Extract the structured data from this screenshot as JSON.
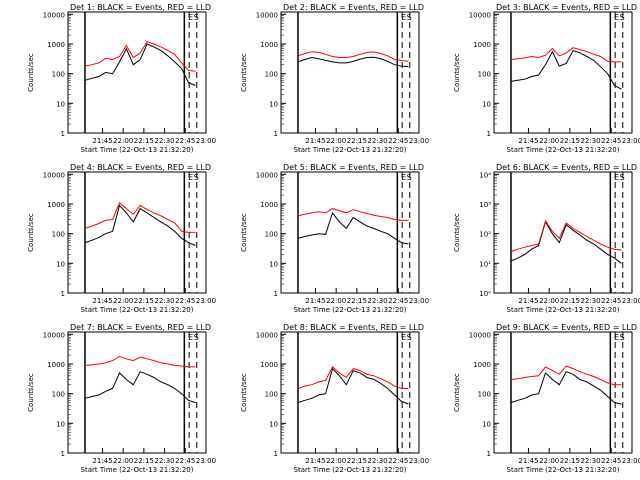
{
  "figure": {
    "colors": {
      "events": "#000000",
      "lld": "#ff0000",
      "axis": "#000000",
      "background": "#ffffff"
    },
    "time_labels": [
      "21:45",
      "22:00",
      "22:15",
      "22:30",
      "22:45",
      "23:00"
    ],
    "xlabel": "Start Time (22-Oct-13 21:32:20)",
    "ylabel": "Counts/sec",
    "marker_labels": [
      "E",
      "S"
    ]
  },
  "chart_data": [
    {
      "type": "line",
      "title": "Det 1: BLACK = Events, RED = LLD",
      "ylim": [
        1,
        12000
      ],
      "yscale": "log",
      "ytick_labels": [
        "1",
        "10",
        "100",
        "1000",
        "10000"
      ],
      "xlim_minutes": [
        -12.3,
        87.7
      ],
      "x_minutes": [
        0,
        5,
        10,
        15,
        20,
        25,
        30,
        35,
        40,
        45,
        50,
        55,
        60,
        65,
        70,
        75,
        80
      ],
      "series": [
        {
          "name": "Events",
          "values": [
            60,
            70,
            80,
            110,
            100,
            250,
            700,
            200,
            300,
            1000,
            800,
            600,
            400,
            250,
            150,
            50,
            40
          ]
        },
        {
          "name": "LLD",
          "values": [
            180,
            200,
            230,
            330,
            300,
            380,
            900,
            350,
            500,
            1200,
            1000,
            800,
            600,
            450,
            230,
            130,
            120
          ]
        }
      ]
    },
    {
      "type": "line",
      "title": "Det 2: BLACK = Events, RED = LLD",
      "ylim": [
        1,
        12000
      ],
      "yscale": "log",
      "ytick_labels": [
        "1",
        "10",
        "100",
        "1000",
        "10000"
      ],
      "xlim_minutes": [
        -12.3,
        87.7
      ],
      "x_minutes": [
        0,
        5,
        10,
        15,
        20,
        25,
        30,
        35,
        40,
        45,
        50,
        55,
        60,
        65,
        70,
        75,
        80
      ],
      "series": [
        {
          "name": "Events",
          "values": [
            250,
            300,
            350,
            320,
            280,
            250,
            230,
            230,
            260,
            310,
            350,
            360,
            320,
            260,
            200,
            180,
            170
          ]
        },
        {
          "name": "LLD",
          "values": [
            400,
            480,
            550,
            520,
            450,
            380,
            350,
            350,
            380,
            450,
            520,
            540,
            480,
            400,
            300,
            280,
            260
          ]
        }
      ]
    },
    {
      "type": "line",
      "title": "Det 3: BLACK = Events, RED = LLD",
      "ylim": [
        1,
        12000
      ],
      "yscale": "log",
      "ytick_labels": [
        "1",
        "10",
        "100",
        "1000",
        "10000"
      ],
      "xlim_minutes": [
        -12.3,
        87.7
      ],
      "x_minutes": [
        0,
        5,
        10,
        15,
        20,
        25,
        30,
        35,
        40,
        45,
        50,
        55,
        60,
        65,
        70,
        75,
        80
      ],
      "series": [
        {
          "name": "Events",
          "values": [
            55,
            60,
            65,
            80,
            90,
            200,
            550,
            180,
            220,
            600,
            500,
            380,
            280,
            170,
            100,
            40,
            30
          ]
        },
        {
          "name": "LLD",
          "values": [
            300,
            320,
            340,
            380,
            350,
            420,
            700,
            400,
            500,
            750,
            650,
            550,
            450,
            380,
            260,
            250,
            250
          ]
        }
      ]
    },
    {
      "type": "line",
      "title": "Det 4: BLACK = Events, RED = LLD",
      "ylim": [
        1,
        12000
      ],
      "yscale": "log",
      "ytick_labels": [
        "1",
        "10",
        "100",
        "1000",
        "10000"
      ],
      "xlim_minutes": [
        -12.3,
        87.7
      ],
      "x_minutes": [
        0,
        5,
        10,
        15,
        20,
        25,
        30,
        35,
        40,
        45,
        50,
        55,
        60,
        65,
        70,
        75,
        80
      ],
      "series": [
        {
          "name": "Events",
          "values": [
            50,
            60,
            75,
            100,
            120,
            900,
            500,
            250,
            700,
            500,
            350,
            250,
            180,
            120,
            70,
            50,
            40
          ]
        },
        {
          "name": "LLD",
          "values": [
            150,
            180,
            220,
            280,
            300,
            1100,
            700,
            450,
            900,
            650,
            500,
            400,
            300,
            230,
            120,
            110,
            110
          ]
        }
      ]
    },
    {
      "type": "line",
      "title": "Det 5: BLACK = Events, RED = LLD",
      "ylim": [
        1,
        12000
      ],
      "yscale": "log",
      "ytick_labels": [
        "1",
        "10",
        "100",
        "1000",
        "10000"
      ],
      "xlim_minutes": [
        -12.3,
        87.7
      ],
      "x_minutes": [
        0,
        5,
        10,
        15,
        20,
        25,
        30,
        35,
        40,
        45,
        50,
        55,
        60,
        65,
        70,
        75,
        80
      ],
      "series": [
        {
          "name": "Events",
          "values": [
            70,
            80,
            90,
            100,
            95,
            500,
            250,
            150,
            350,
            250,
            180,
            150,
            120,
            100,
            70,
            50,
            45
          ]
        },
        {
          "name": "LLD",
          "values": [
            400,
            450,
            500,
            550,
            500,
            700,
            600,
            500,
            650,
            550,
            480,
            420,
            380,
            350,
            300,
            280,
            280
          ]
        }
      ]
    },
    {
      "type": "line",
      "title": "Det 6: BLACK = Events, RED = LLD",
      "ylim": [
        1,
        12000
      ],
      "yscale": "log",
      "ytick_labels": [
        "10⁰",
        "10¹",
        "10²",
        "10³",
        "10⁴"
      ],
      "xlim_minutes": [
        -12.3,
        87.7
      ],
      "x_minutes": [
        0,
        5,
        10,
        15,
        20,
        25,
        30,
        35,
        40,
        45,
        50,
        55,
        60,
        65,
        70,
        75,
        80
      ],
      "series": [
        {
          "name": "Events",
          "values": [
            12,
            15,
            20,
            30,
            40,
            250,
            100,
            50,
            200,
            130,
            90,
            60,
            45,
            30,
            20,
            15,
            10
          ]
        },
        {
          "name": "LLD",
          "values": [
            25,
            30,
            35,
            40,
            45,
            270,
            120,
            70,
            230,
            150,
            110,
            80,
            60,
            45,
            35,
            30,
            28
          ]
        }
      ]
    },
    {
      "type": "line",
      "title": "Det 7: BLACK = Events, RED = LLD",
      "ylim": [
        1,
        12000
      ],
      "yscale": "log",
      "ytick_labels": [
        "1",
        "10",
        "100",
        "1000",
        "10000"
      ],
      "xlim_minutes": [
        -12.3,
        87.7
      ],
      "x_minutes": [
        0,
        5,
        10,
        15,
        20,
        25,
        30,
        35,
        40,
        45,
        50,
        55,
        60,
        65,
        70,
        75,
        80
      ],
      "series": [
        {
          "name": "Events",
          "values": [
            70,
            80,
            90,
            120,
            150,
            500,
            300,
            200,
            550,
            450,
            350,
            250,
            200,
            150,
            100,
            60,
            50
          ]
        },
        {
          "name": "LLD",
          "values": [
            900,
            950,
            1000,
            1100,
            1300,
            1800,
            1500,
            1300,
            1700,
            1500,
            1300,
            1100,
            1000,
            900,
            850,
            800,
            800
          ]
        }
      ]
    },
    {
      "type": "line",
      "title": "Det 8: BLACK = Events, RED = LLD",
      "ylim": [
        1,
        12000
      ],
      "yscale": "log",
      "ytick_labels": [
        "1",
        "10",
        "100",
        "1000",
        "10000"
      ],
      "xlim_minutes": [
        -12.3,
        87.7
      ],
      "x_minutes": [
        0,
        5,
        10,
        15,
        20,
        25,
        30,
        35,
        40,
        45,
        50,
        55,
        60,
        65,
        70,
        75,
        80
      ],
      "series": [
        {
          "name": "Events",
          "values": [
            50,
            60,
            70,
            90,
            100,
            700,
            400,
            200,
            600,
            500,
            350,
            300,
            220,
            150,
            90,
            55,
            45
          ]
        },
        {
          "name": "LLD",
          "values": [
            150,
            180,
            200,
            250,
            280,
            800,
            500,
            350,
            700,
            600,
            450,
            400,
            320,
            250,
            180,
            150,
            150
          ]
        }
      ]
    },
    {
      "type": "line",
      "title": "Det 9: BLACK = Events, RED = LLD",
      "ylim": [
        1,
        12000
      ],
      "yscale": "log",
      "ytick_labels": [
        "1",
        "10",
        "100",
        "1000",
        "10000"
      ],
      "xlim_minutes": [
        -12.3,
        87.7
      ],
      "x_minutes": [
        0,
        5,
        10,
        15,
        20,
        25,
        30,
        35,
        40,
        45,
        50,
        55,
        60,
        65,
        70,
        75,
        80
      ],
      "series": [
        {
          "name": "Events",
          "values": [
            50,
            60,
            70,
            90,
            100,
            500,
            300,
            200,
            550,
            450,
            300,
            250,
            180,
            130,
            80,
            50,
            45
          ]
        },
        {
          "name": "LLD",
          "values": [
            300,
            320,
            350,
            380,
            400,
            800,
            600,
            450,
            850,
            700,
            550,
            450,
            380,
            300,
            230,
            200,
            200
          ]
        }
      ]
    }
  ]
}
